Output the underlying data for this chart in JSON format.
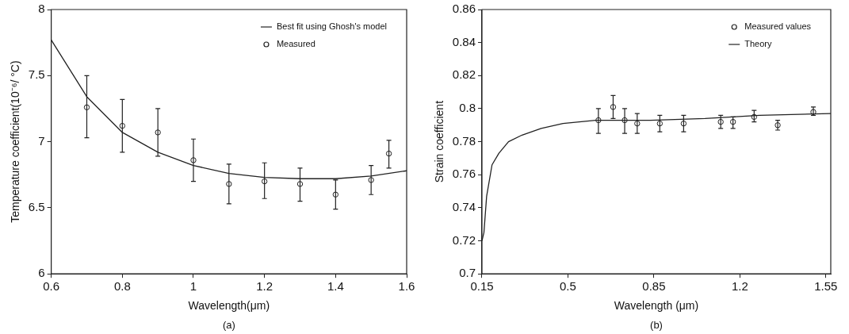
{
  "chart_data": [
    {
      "type": "scatter",
      "xlabel": "Wavelength(μm)",
      "ylabel": "Temperature coefficient(10⁻⁶/ °C)",
      "annotations": [
        "(a)"
      ],
      "xlim": [
        0.6,
        1.6
      ],
      "xticks": [
        0.6,
        0.8,
        1,
        1.2,
        1.4,
        1.6
      ],
      "ylim": [
        6,
        8
      ],
      "yticks": [
        6,
        6.5,
        7,
        7.5,
        8
      ],
      "grid": false,
      "legend": "top right",
      "series": [
        {
          "name": "Best fit using Ghosh's model",
          "type": "line",
          "color": "#222222",
          "marker": "none",
          "x": [
            0.6,
            0.7,
            0.8,
            0.9,
            1.0,
            1.1,
            1.2,
            1.3,
            1.4,
            1.5,
            1.6
          ],
          "values": [
            7.77,
            7.34,
            7.07,
            6.92,
            6.82,
            6.76,
            6.73,
            6.72,
            6.72,
            6.74,
            6.78
          ]
        },
        {
          "name": "Measured",
          "type": "scatter",
          "color": "#222222",
          "marker": "circle",
          "x": [
            0.7,
            0.8,
            0.9,
            1.0,
            1.1,
            1.2,
            1.3,
            1.4,
            1.5,
            1.55
          ],
          "values": [
            7.26,
            7.12,
            7.07,
            6.86,
            6.68,
            6.7,
            6.68,
            6.6,
            6.71,
            6.91
          ],
          "errors": [
            [
              7.03,
              7.5
            ],
            [
              6.92,
              7.32
            ],
            [
              6.89,
              7.25
            ],
            [
              6.7,
              7.02
            ],
            [
              6.53,
              6.83
            ],
            [
              6.57,
              6.84
            ],
            [
              6.55,
              6.8
            ],
            [
              6.49,
              6.71
            ],
            [
              6.6,
              6.82
            ],
            [
              6.8,
              7.01
            ]
          ]
        }
      ]
    },
    {
      "type": "scatter",
      "xlabel": "Wavelength (μm)",
      "ylabel": "Strain coefficient",
      "annotations": [
        "(b)"
      ],
      "xlim": [
        0.15,
        1.57
      ],
      "xticks": [
        0.15,
        0.5,
        0.85,
        1.2,
        1.55
      ],
      "ylim": [
        0.7,
        0.86
      ],
      "yticks": [
        0.7,
        0.72,
        0.74,
        0.76,
        0.78,
        0.8,
        0.82,
        0.84,
        0.86
      ],
      "grid": false,
      "legend": "top right",
      "series": [
        {
          "name": "Measured values",
          "type": "scatter",
          "color": "#222222",
          "marker": "circle",
          "x": [
            0.624,
            0.684,
            0.731,
            0.782,
            0.874,
            0.971,
            1.122,
            1.172,
            1.258,
            1.354,
            1.499
          ],
          "values": [
            0.793,
            0.801,
            0.793,
            0.791,
            0.791,
            0.791,
            0.792,
            0.792,
            0.795,
            0.79,
            0.798
          ],
          "errors": [
            [
              0.785,
              0.8
            ],
            [
              0.794,
              0.808
            ],
            [
              0.785,
              0.8
            ],
            [
              0.785,
              0.797
            ],
            [
              0.786,
              0.796
            ],
            [
              0.786,
              0.796
            ],
            [
              0.788,
              0.796
            ],
            [
              0.788,
              0.795
            ],
            [
              0.792,
              0.799
            ],
            [
              0.787,
              0.793
            ],
            [
              0.796,
              0.801
            ]
          ]
        },
        {
          "name": "Theory",
          "type": "line",
          "color": "#222222",
          "marker": "none",
          "x": [
            0.15,
            0.158,
            0.169,
            0.191,
            0.219,
            0.258,
            0.313,
            0.391,
            0.48,
            0.613,
            0.836,
            1.058,
            1.28,
            1.57
          ],
          "values": [
            0.72,
            0.725,
            0.747,
            0.766,
            0.773,
            0.78,
            0.784,
            0.788,
            0.791,
            0.793,
            0.793,
            0.794,
            0.796,
            0.797
          ]
        }
      ]
    }
  ]
}
